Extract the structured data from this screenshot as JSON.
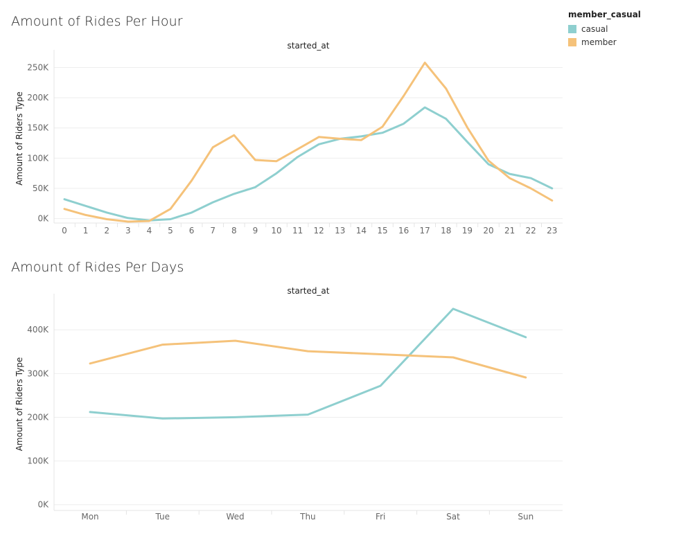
{
  "chart_data": [
    {
      "type": "line",
      "title": "Amount of Rides Per Hour",
      "column_header": "started_at",
      "ylabel": "Amount of Riders Type",
      "ylim": [
        -5000,
        270000
      ],
      "yticks": [
        0,
        50000,
        100000,
        150000,
        200000,
        250000
      ],
      "ytick_labels": [
        "0K",
        "50K",
        "100K",
        "150K",
        "200K",
        "250K"
      ],
      "x": [
        "0",
        "1",
        "2",
        "3",
        "4",
        "5",
        "6",
        "7",
        "8",
        "9",
        "10",
        "11",
        "12",
        "13",
        "14",
        "15",
        "16",
        "17",
        "18",
        "19",
        "20",
        "21",
        "22",
        "23"
      ],
      "series": [
        {
          "name": "casual",
          "color": "#8ecfcf",
          "values": [
            32000,
            21000,
            10000,
            1000,
            -3000,
            -1000,
            10000,
            27000,
            41000,
            52000,
            75000,
            102000,
            123000,
            132000,
            136000,
            142000,
            157000,
            184000,
            165000,
            127000,
            90000,
            74000,
            67000,
            50000
          ]
        },
        {
          "name": "member",
          "color": "#f5c27a",
          "values": [
            16000,
            6000,
            -1000,
            -5000,
            -4000,
            16000,
            63000,
            118000,
            138000,
            97000,
            95000,
            115000,
            135000,
            132000,
            130000,
            152000,
            203000,
            258000,
            215000,
            151000,
            96000,
            67000,
            50000,
            30000
          ]
        }
      ]
    },
    {
      "type": "line",
      "title": "Amount of Rides Per Days",
      "column_header": "started_at",
      "ylabel": "Amount of Riders Type",
      "ylim": [
        -10000,
        470000
      ],
      "yticks": [
        0,
        100000,
        200000,
        300000,
        400000
      ],
      "ytick_labels": [
        "0K",
        "100K",
        "200K",
        "300K",
        "400K"
      ],
      "x": [
        "Mon",
        "Tue",
        "Wed",
        "Thu",
        "Fri",
        "Sat",
        "Sun"
      ],
      "series": [
        {
          "name": "casual",
          "color": "#8ecfcf",
          "values": [
            212000,
            197000,
            200000,
            206000,
            272000,
            448000,
            383000
          ]
        },
        {
          "name": "member",
          "color": "#f5c27a",
          "values": [
            323000,
            366000,
            375000,
            351000,
            344000,
            337000,
            291000
          ]
        }
      ]
    }
  ],
  "legend": {
    "title": "member_casual",
    "items": [
      {
        "label": "casual",
        "color": "#8ecfcf"
      },
      {
        "label": "member",
        "color": "#f5c27a"
      }
    ]
  }
}
